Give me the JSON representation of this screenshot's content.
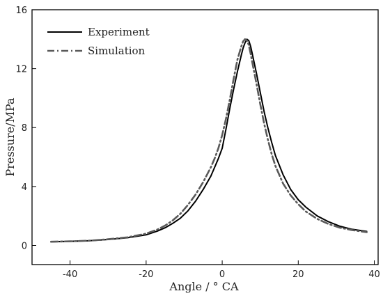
{
  "chart_data": {
    "type": "line",
    "title": "",
    "xlabel": "Angle / ° CA",
    "ylabel": "Pressure/MPa",
    "xlim": [
      -50,
      41
    ],
    "ylim": [
      -1.3,
      16
    ],
    "xticks": [
      -40,
      -20,
      0,
      20,
      40
    ],
    "yticks": [
      0,
      4,
      8,
      12,
      16
    ],
    "grid": false,
    "legend_position": "top-left",
    "series": [
      {
        "name": "Experiment",
        "style": "solid",
        "color": "#000000",
        "x": [
          -45,
          -40,
          -35,
          -30,
          -25,
          -20,
          -17,
          -15,
          -13,
          -11,
          -9,
          -7,
          -5,
          -3,
          -2,
          -1,
          0,
          1,
          2,
          3,
          4,
          5,
          5.5,
          6,
          6.5,
          7,
          7.5,
          8,
          9,
          10,
          11,
          12,
          13,
          14,
          16,
          18,
          20,
          22,
          25,
          28,
          31,
          34,
          38
        ],
        "y": [
          0.25,
          0.28,
          0.32,
          0.4,
          0.52,
          0.72,
          0.98,
          1.2,
          1.5,
          1.85,
          2.35,
          3.0,
          3.8,
          4.7,
          5.3,
          5.9,
          6.6,
          7.9,
          9.3,
          10.6,
          11.8,
          12.9,
          13.4,
          13.75,
          14.0,
          13.9,
          13.5,
          12.9,
          11.7,
          10.4,
          9.1,
          8.0,
          7.0,
          6.1,
          4.8,
          3.8,
          3.1,
          2.6,
          2.0,
          1.6,
          1.3,
          1.1,
          0.95
        ]
      },
      {
        "name": "Simulation",
        "style": "dashdot",
        "color": "#5a5a5a",
        "x": [
          -45,
          -40,
          -35,
          -30,
          -25,
          -20,
          -17,
          -15,
          -13,
          -11,
          -9,
          -7,
          -5,
          -3,
          -2,
          -1,
          0,
          1,
          2,
          3,
          4,
          5,
          5.5,
          6,
          6.5,
          7,
          7.5,
          8,
          9,
          10,
          11,
          12,
          13,
          14,
          16,
          18,
          20,
          22,
          25,
          28,
          31,
          34,
          38
        ],
        "y": [
          0.25,
          0.28,
          0.32,
          0.42,
          0.55,
          0.8,
          1.08,
          1.35,
          1.7,
          2.15,
          2.75,
          3.45,
          4.3,
          5.3,
          5.9,
          6.6,
          7.5,
          8.6,
          9.9,
          11.3,
          12.6,
          13.5,
          13.85,
          14.0,
          13.9,
          13.6,
          13.0,
          12.3,
          11.0,
          9.6,
          8.3,
          7.2,
          6.2,
          5.4,
          4.2,
          3.4,
          2.8,
          2.3,
          1.8,
          1.45,
          1.2,
          1.05,
          0.9
        ]
      }
    ]
  }
}
